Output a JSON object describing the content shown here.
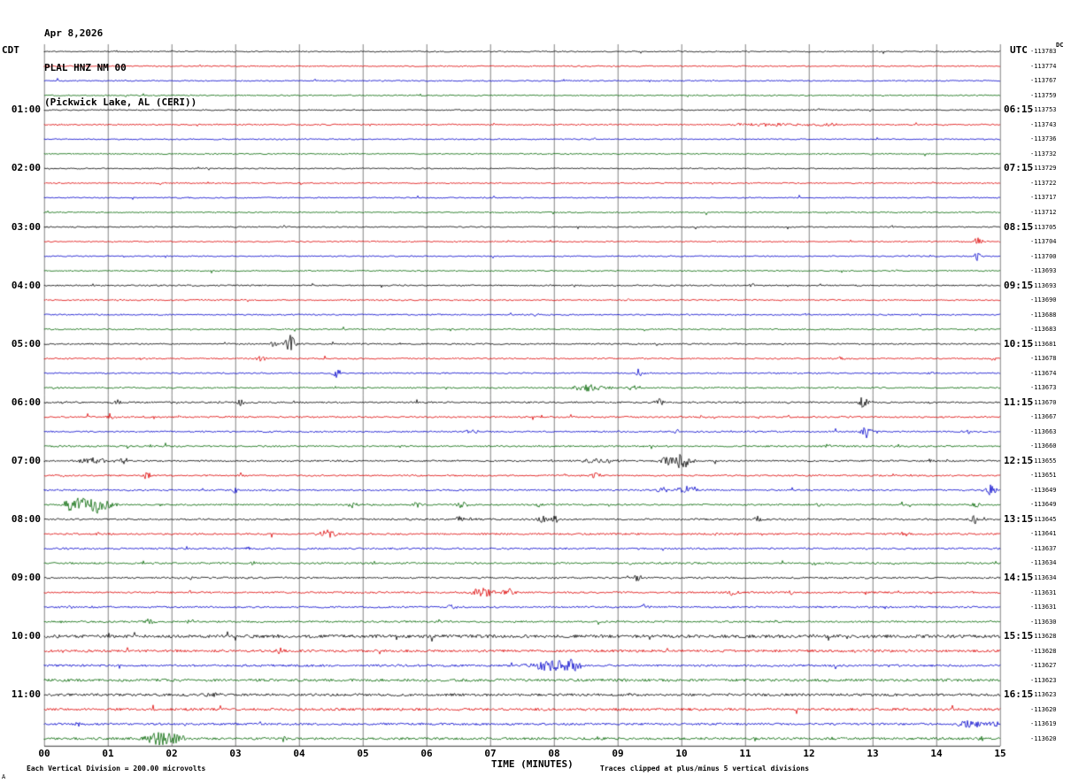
{
  "header": {
    "date": "Apr 8,2026",
    "station": "PLAL HNZ NM 00",
    "location": "(Pickwick Lake, AL (CERI))"
  },
  "axes": {
    "left_tz": "CDT",
    "right_tz": "UTC",
    "dc_header": "DC",
    "x_title": "TIME (MINUTES)",
    "x_ticks": [
      "00",
      "01",
      "02",
      "03",
      "04",
      "05",
      "06",
      "07",
      "08",
      "09",
      "10",
      "11",
      "12",
      "13",
      "14",
      "15"
    ]
  },
  "footer": {
    "scale_note": "Each Vertical Division =  200.00 microvolts",
    "clip_note": "Traces clipped at plus/minus 5 vertical divisions",
    "corner_mark": "A"
  },
  "chart_data": {
    "type": "line",
    "subtype": "helicorder-seismogram",
    "title": "PLAL HNZ NM 00 (Pickwick Lake, AL (CERI)) Apr 8,2026",
    "xlabel": "TIME (MINUTES)",
    "x_range": [
      0,
      15
    ],
    "minutes_per_line": 15,
    "scale_microvolts_per_division": 200.0,
    "clip_divisions": 5,
    "color_cycle": [
      "black",
      "red",
      "blue",
      "green"
    ],
    "colors": {
      "black": "#000000",
      "red": "#dd0000",
      "blue": "#0000cc",
      "green": "#006600"
    },
    "rows": [
      {
        "left": "",
        "right": "",
        "dc": "-113783",
        "c": 0,
        "n": 0.7,
        "ev": []
      },
      {
        "left": "",
        "right": "",
        "dc": "-113774",
        "c": 1,
        "n": 0.7,
        "ev": []
      },
      {
        "left": "",
        "right": "",
        "dc": "-113767",
        "c": 2,
        "n": 0.7,
        "ev": []
      },
      {
        "left": "",
        "right": "",
        "dc": "-113759",
        "c": 3,
        "n": 0.7,
        "ev": []
      },
      {
        "left": "01:00",
        "right": "06:15",
        "dc": "-113753",
        "c": 0,
        "n": 0.7,
        "ev": [
          [
            12.1,
            1.5,
            20
          ]
        ]
      },
      {
        "left": "",
        "right": "",
        "dc": "-113743",
        "c": 1,
        "n": 0.8,
        "ev": [
          [
            11.3,
            1.8,
            50
          ],
          [
            12.3,
            1.6,
            30
          ]
        ]
      },
      {
        "left": "",
        "right": "",
        "dc": "-113736",
        "c": 2,
        "n": 0.7,
        "ev": []
      },
      {
        "left": "",
        "right": "",
        "dc": "-113732",
        "c": 3,
        "n": 0.7,
        "ev": []
      },
      {
        "left": "02:00",
        "right": "07:15",
        "dc": "-113729",
        "c": 0,
        "n": 0.7,
        "ev": []
      },
      {
        "left": "",
        "right": "",
        "dc": "-113722",
        "c": 1,
        "n": 0.7,
        "ev": []
      },
      {
        "left": "",
        "right": "",
        "dc": "-113717",
        "c": 2,
        "n": 0.7,
        "ev": []
      },
      {
        "left": "",
        "right": "",
        "dc": "-113712",
        "c": 3,
        "n": 0.7,
        "ev": [
          [
            4.6,
            1.5,
            8
          ]
        ]
      },
      {
        "left": "03:00",
        "right": "08:15",
        "dc": "-113705",
        "c": 0,
        "n": 0.7,
        "ev": []
      },
      {
        "left": "",
        "right": "",
        "dc": "-113704",
        "c": 1,
        "n": 0.7,
        "ev": [
          [
            14.65,
            6,
            6
          ]
        ]
      },
      {
        "left": "",
        "right": "",
        "dc": "-113700",
        "c": 2,
        "n": 0.7,
        "ev": [
          [
            14.65,
            5,
            6
          ]
        ]
      },
      {
        "left": "",
        "right": "",
        "dc": "-113693",
        "c": 3,
        "n": 0.7,
        "ev": []
      },
      {
        "left": "04:00",
        "right": "09:15",
        "dc": "-113693",
        "c": 0,
        "n": 0.8,
        "ev": [
          [
            11.1,
            2.5,
            6
          ]
        ]
      },
      {
        "left": "",
        "right": "",
        "dc": "-113690",
        "c": 1,
        "n": 0.8,
        "ev": []
      },
      {
        "left": "",
        "right": "",
        "dc": "-113688",
        "c": 2,
        "n": 0.8,
        "ev": [
          [
            7.7,
            1.5,
            6
          ]
        ]
      },
      {
        "left": "",
        "right": "",
        "dc": "-113683",
        "c": 3,
        "n": 0.8,
        "ev": [
          [
            4.2,
            1.5,
            6
          ]
        ]
      },
      {
        "left": "05:00",
        "right": "10:15",
        "dc": "-113681",
        "c": 0,
        "n": 0.8,
        "ev": [
          [
            3.85,
            10,
            9
          ],
          [
            3.6,
            3,
            6
          ],
          [
            9.6,
            1.8,
            6
          ]
        ]
      },
      {
        "left": "",
        "right": "",
        "dc": "-113678",
        "c": 1,
        "n": 0.8,
        "ev": [
          [
            3.4,
            5,
            7
          ],
          [
            12.5,
            2.5,
            6
          ],
          [
            14.9,
            2,
            5
          ]
        ]
      },
      {
        "left": "",
        "right": "",
        "dc": "-113674",
        "c": 2,
        "n": 0.8,
        "ev": [
          [
            4.6,
            6,
            7
          ],
          [
            9.35,
            5,
            7
          ],
          [
            13.9,
            1.8,
            5
          ]
        ]
      },
      {
        "left": "",
        "right": "",
        "dc": "-113673",
        "c": 3,
        "n": 0.8,
        "ev": [
          [
            8.55,
            4,
            30
          ],
          [
            9.25,
            3,
            10
          ],
          [
            0.2,
            2,
            6
          ]
        ]
      },
      {
        "left": "06:00",
        "right": "11:15",
        "dc": "-113670",
        "c": 0,
        "n": 0.9,
        "ev": [
          [
            1.15,
            3,
            8
          ],
          [
            3.05,
            7,
            7
          ],
          [
            9.65,
            5.5,
            7
          ],
          [
            12.85,
            7,
            8
          ],
          [
            13.9,
            2,
            5
          ],
          [
            0.3,
            2,
            5
          ]
        ]
      },
      {
        "left": "",
        "right": "",
        "dc": "-113667",
        "c": 1,
        "n": 0.9,
        "ev": [
          [
            1.05,
            4,
            7
          ]
        ]
      },
      {
        "left": "",
        "right": "",
        "dc": "-113663",
        "c": 2,
        "n": 0.9,
        "ev": [
          [
            6.75,
            2.5,
            12
          ],
          [
            9.9,
            3,
            7
          ],
          [
            12.9,
            8,
            7
          ],
          [
            14.5,
            3,
            6
          ]
        ]
      },
      {
        "left": "",
        "right": "",
        "dc": "-113660",
        "c": 3,
        "n": 0.9,
        "ev": [
          [
            12.3,
            3,
            7
          ],
          [
            7.8,
            1.5,
            6
          ]
        ]
      },
      {
        "left": "07:00",
        "right": "12:15",
        "dc": "-113655",
        "c": 0,
        "n": 0.9,
        "ev": [
          [
            0.75,
            3.5,
            25
          ],
          [
            1.25,
            3,
            10
          ],
          [
            8.7,
            2.2,
            40
          ],
          [
            10.0,
            9,
            18
          ],
          [
            9.75,
            4,
            10
          ],
          [
            13.9,
            1.8,
            5
          ]
        ]
      },
      {
        "left": "",
        "right": "",
        "dc": "-113651",
        "c": 1,
        "n": 0.9,
        "ev": [
          [
            1.6,
            4,
            7
          ],
          [
            8.65,
            4,
            8
          ],
          [
            0.3,
            1.5,
            5
          ]
        ]
      },
      {
        "left": "",
        "right": "",
        "dc": "-113649",
        "c": 2,
        "n": 0.9,
        "ev": [
          [
            3.0,
            4,
            7
          ],
          [
            10.1,
            4.5,
            20
          ],
          [
            9.7,
            3,
            8
          ],
          [
            14.85,
            6,
            10
          ]
        ]
      },
      {
        "left": "",
        "right": "",
        "dc": "-113649",
        "c": 3,
        "n": 0.9,
        "ev": [
          [
            0.75,
            10,
            30
          ],
          [
            0.45,
            6,
            12
          ],
          [
            4.85,
            5,
            7
          ],
          [
            5.85,
            4,
            7
          ],
          [
            6.55,
            6,
            8
          ],
          [
            7.75,
            3,
            6
          ],
          [
            14.6,
            4,
            7
          ],
          [
            12.15,
            2,
            5
          ]
        ]
      },
      {
        "left": "08:00",
        "right": "13:15",
        "dc": "-113645",
        "c": 0,
        "n": 1.0,
        "ev": [
          [
            6.5,
            5,
            7
          ],
          [
            7.8,
            6,
            7
          ],
          [
            8.0,
            5,
            6
          ],
          [
            11.2,
            3,
            6
          ],
          [
            14.6,
            5,
            7
          ],
          [
            6.7,
            2,
            5
          ]
        ]
      },
      {
        "left": "",
        "right": "",
        "dc": "-113641",
        "c": 1,
        "n": 1.0,
        "ev": [
          [
            0.85,
            2,
            5
          ],
          [
            4.45,
            4,
            18
          ],
          [
            13.5,
            3,
            6
          ],
          [
            10.9,
            1.5,
            5
          ]
        ]
      },
      {
        "left": "",
        "right": "",
        "dc": "-113637",
        "c": 2,
        "n": 1.0,
        "ev": [
          [
            3.2,
            2,
            6
          ],
          [
            9.3,
            1.5,
            5
          ]
        ]
      },
      {
        "left": "",
        "right": "",
        "dc": "-113634",
        "c": 3,
        "n": 1.0,
        "ev": [
          [
            3.3,
            2,
            6
          ],
          [
            5.2,
            2,
            6
          ],
          [
            13.3,
            2.5,
            6
          ],
          [
            9.2,
            1.5,
            5
          ]
        ]
      },
      {
        "left": "09:00",
        "right": "14:15",
        "dc": "-113634",
        "c": 0,
        "n": 1.0,
        "ev": [
          [
            9.3,
            5,
            6
          ],
          [
            2.3,
            2,
            5
          ],
          [
            12.9,
            1.5,
            5
          ]
        ]
      },
      {
        "left": "",
        "right": "",
        "dc": "-113631",
        "c": 1,
        "n": 1.0,
        "ev": [
          [
            2.3,
            3,
            6
          ],
          [
            6.9,
            5,
            22
          ],
          [
            7.3,
            4,
            10
          ],
          [
            10.8,
            4,
            7
          ],
          [
            11.7,
            3,
            6
          ],
          [
            13.9,
            2,
            5
          ]
        ]
      },
      {
        "left": "",
        "right": "",
        "dc": "-113631",
        "c": 2,
        "n": 1.0,
        "ev": [
          [
            6.4,
            3,
            7
          ],
          [
            9.4,
            4,
            7
          ],
          [
            13.2,
            2,
            5
          ],
          [
            0.4,
            2,
            5
          ]
        ]
      },
      {
        "left": "",
        "right": "",
        "dc": "-113630",
        "c": 3,
        "n": 1.0,
        "ev": [
          [
            1.65,
            5,
            7
          ],
          [
            2.3,
            3,
            6
          ],
          [
            11.5,
            1.5,
            5
          ]
        ]
      },
      {
        "left": "10:00",
        "right": "15:15",
        "dc": "-113628",
        "c": 0,
        "n": 1.7,
        "ev": [
          [
            9.45,
            2,
            6
          ]
        ]
      },
      {
        "left": "",
        "right": "",
        "dc": "-113628",
        "c": 1,
        "n": 1.4,
        "ev": [
          [
            3.7,
            3,
            6
          ],
          [
            0.3,
            2,
            5
          ]
        ]
      },
      {
        "left": "",
        "right": "",
        "dc": "-113627",
        "c": 2,
        "n": 1.2,
        "ev": [
          [
            7.95,
            7,
            30
          ],
          [
            8.3,
            5,
            14
          ],
          [
            11.8,
            2,
            5
          ]
        ]
      },
      {
        "left": "",
        "right": "",
        "dc": "-113623",
        "c": 3,
        "n": 1.5,
        "ev": []
      },
      {
        "left": "11:00",
        "right": "16:15",
        "dc": "-113623",
        "c": 0,
        "n": 1.4,
        "ev": [
          [
            2.65,
            3,
            10
          ]
        ]
      },
      {
        "left": "",
        "right": "",
        "dc": "-113620",
        "c": 1,
        "n": 1.4,
        "ev": []
      },
      {
        "left": "",
        "right": "",
        "dc": "-113619",
        "c": 2,
        "n": 1.2,
        "ev": [
          [
            14.5,
            5,
            20
          ],
          [
            0.55,
            3.5,
            6
          ],
          [
            14.9,
            4,
            8
          ]
        ]
      },
      {
        "left": "",
        "right": "",
        "dc": "-113620",
        "c": 3,
        "n": 1.3,
        "ev": [
          [
            1.8,
            8,
            22
          ],
          [
            2.1,
            5,
            10
          ],
          [
            3.75,
            3,
            6
          ],
          [
            14.7,
            3,
            8
          ]
        ]
      }
    ]
  }
}
